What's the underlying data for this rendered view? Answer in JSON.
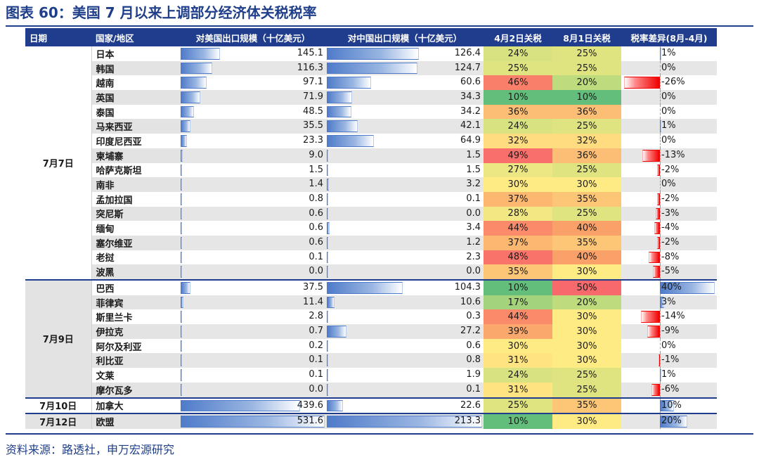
{
  "title": "图表 60：美国 7 月以来上调部分经济体关税税率",
  "source": "资料来源：路透社，申万宏源研究",
  "headers": [
    "日期",
    "国家/地区",
    "对美国出口规模（十亿美元）",
    "对中国出口规模（十亿美元）",
    "4月2日关税",
    "8月1日关税",
    "税率差异(8月-4月)"
  ],
  "groups": [
    {
      "date": "7月7日",
      "rows": [
        {
          "country": "日本",
          "us": "145.1",
          "cn": "126.4",
          "apr": "24%",
          "aug": "25%",
          "diff": "1%"
        },
        {
          "country": "韩国",
          "us": "116.3",
          "cn": "124.7",
          "apr": "25%",
          "aug": "25%",
          "diff": "0%"
        },
        {
          "country": "越南",
          "us": "97.1",
          "cn": "60.6",
          "apr": "46%",
          "aug": "20%",
          "diff": "-26%"
        },
        {
          "country": "英国",
          "us": "71.9",
          "cn": "34.3",
          "apr": "10%",
          "aug": "10%",
          "diff": "0%"
        },
        {
          "country": "泰国",
          "us": "48.5",
          "cn": "34.2",
          "apr": "36%",
          "aug": "36%",
          "diff": "0%"
        },
        {
          "country": "马来西亚",
          "us": "35.5",
          "cn": "42.1",
          "apr": "24%",
          "aug": "25%",
          "diff": "1%"
        },
        {
          "country": "印度尼西亚",
          "us": "23.3",
          "cn": "64.9",
          "apr": "32%",
          "aug": "32%",
          "diff": "0%"
        },
        {
          "country": "柬埔寨",
          "us": "9.0",
          "cn": "1.5",
          "apr": "49%",
          "aug": "36%",
          "diff": "-13%"
        },
        {
          "country": "哈萨克斯坦",
          "us": "1.5",
          "cn": "1.5",
          "apr": "27%",
          "aug": "25%",
          "diff": "-2%"
        },
        {
          "country": "南非",
          "us": "1.4",
          "cn": "3.2",
          "apr": "30%",
          "aug": "30%",
          "diff": "0%"
        },
        {
          "country": "孟加拉国",
          "us": "0.8",
          "cn": "0.1",
          "apr": "37%",
          "aug": "35%",
          "diff": "-2%"
        },
        {
          "country": "突尼斯",
          "us": "0.6",
          "cn": "0.0",
          "apr": "28%",
          "aug": "25%",
          "diff": "-3%"
        },
        {
          "country": "缅甸",
          "us": "0.6",
          "cn": "3.4",
          "apr": "44%",
          "aug": "40%",
          "diff": "-4%"
        },
        {
          "country": "塞尔维亚",
          "us": "0.6",
          "cn": "1.2",
          "apr": "37%",
          "aug": "35%",
          "diff": "-2%"
        },
        {
          "country": "老挝",
          "us": "0.1",
          "cn": "2.3",
          "apr": "48%",
          "aug": "40%",
          "diff": "-8%"
        },
        {
          "country": "波黑",
          "us": "0.0",
          "cn": "0.0",
          "apr": "35%",
          "aug": "30%",
          "diff": "-5%"
        }
      ]
    },
    {
      "date": "7月9日",
      "rows": [
        {
          "country": "巴西",
          "us": "37.5",
          "cn": "104.3",
          "apr": "10%",
          "aug": "50%",
          "diff": "40%"
        },
        {
          "country": "菲律宾",
          "us": "11.4",
          "cn": "10.6",
          "apr": "17%",
          "aug": "20%",
          "diff": "3%"
        },
        {
          "country": "斯里兰卡",
          "us": "2.8",
          "cn": "0.3",
          "apr": "44%",
          "aug": "30%",
          "diff": "-14%"
        },
        {
          "country": "伊拉克",
          "us": "0.7",
          "cn": "27.2",
          "apr": "39%",
          "aug": "30%",
          "diff": "-9%"
        },
        {
          "country": "阿尔及利亚",
          "us": "0.2",
          "cn": "0.6",
          "apr": "30%",
          "aug": "30%",
          "diff": "0%"
        },
        {
          "country": "利比亚",
          "us": "0.1",
          "cn": "0.8",
          "apr": "31%",
          "aug": "30%",
          "diff": "-1%"
        },
        {
          "country": "文莱",
          "us": "0.1",
          "cn": "1.9",
          "apr": "24%",
          "aug": "25%",
          "diff": "1%"
        },
        {
          "country": "摩尔瓦多",
          "us": "0.0",
          "cn": "0.1",
          "apr": "31%",
          "aug": "25%",
          "diff": "-6%"
        }
      ]
    },
    {
      "date": "7月10日",
      "rows": [
        {
          "country": "加拿大",
          "us": "439.6",
          "cn": "22.6",
          "apr": "25%",
          "aug": "35%",
          "diff": "10%"
        }
      ]
    },
    {
      "date": "7月12日",
      "rows": [
        {
          "country": "欧盟",
          "us": "531.6",
          "cn": "213.3",
          "apr": "10%",
          "aug": "30%",
          "diff": "20%"
        }
      ]
    }
  ]
}
